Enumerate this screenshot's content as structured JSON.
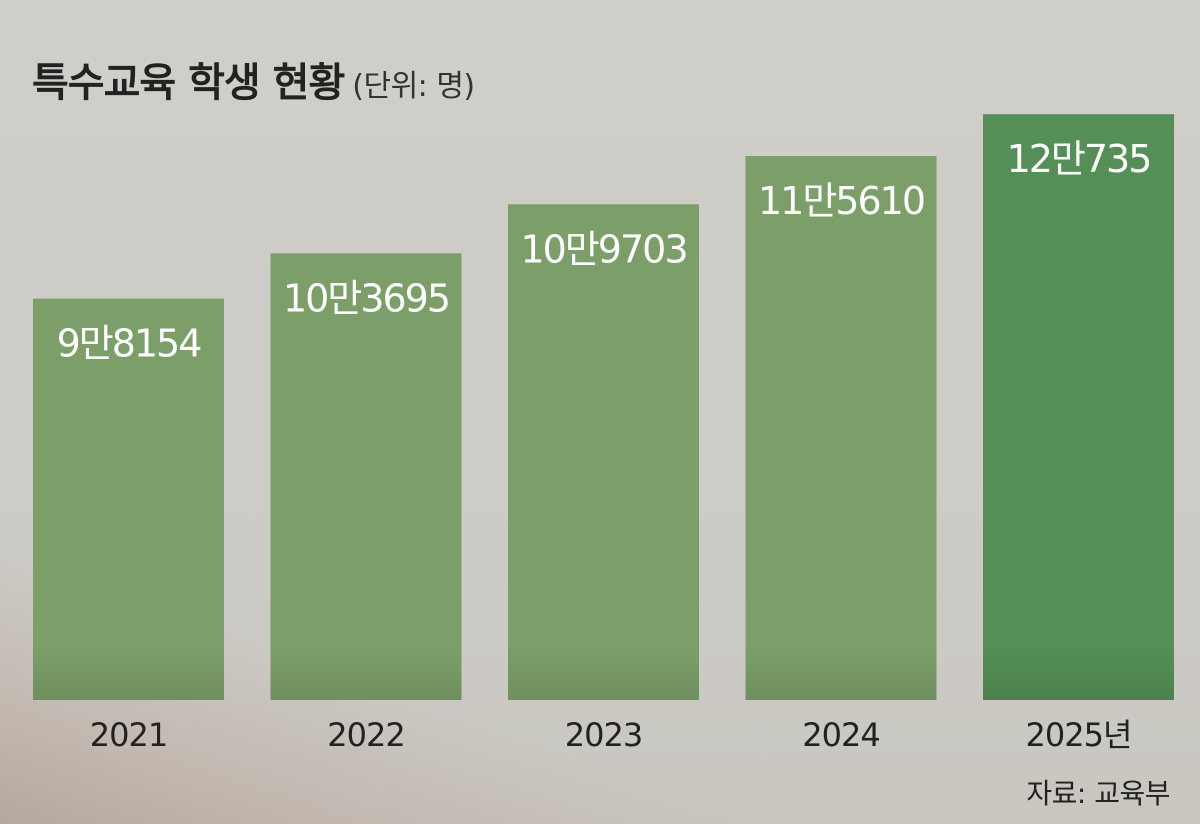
{
  "title": "특수교육 학생 현황",
  "unit": "(단위: 명)",
  "source": "자료: 교육부",
  "colors": {
    "bar": "#7c9f69",
    "bar_highlight": "#558f57",
    "value_text": "#ffffff",
    "text": "#222222"
  },
  "chart_data": {
    "type": "bar",
    "categories": [
      "2021",
      "2022",
      "2023",
      "2024",
      "2025년"
    ],
    "values": [
      98154,
      103695,
      109703,
      115610,
      120735
    ],
    "value_labels": [
      "9만8154",
      "10만3695",
      "10만9703",
      "11만5610",
      "12만735"
    ],
    "highlight_index": 4,
    "title": "특수교육 학생 현황",
    "unit": "(단위: 명)",
    "ylim": [
      0,
      121000
    ],
    "grid": false,
    "legend": "none"
  }
}
